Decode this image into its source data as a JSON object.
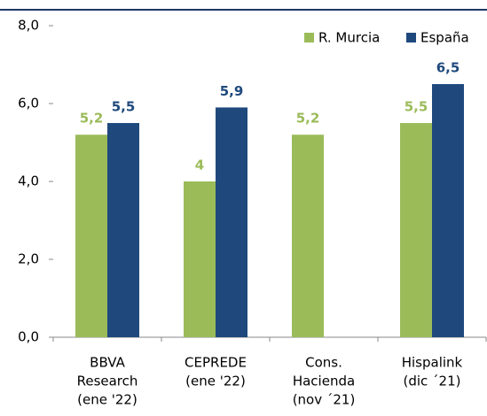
{
  "chart_data": {
    "type": "bar",
    "categories": [
      [
        "BBVA",
        "Research",
        "(ene '22)"
      ],
      [
        "CEPREDE",
        "(ene '22)"
      ],
      [
        "Cons.",
        "Hacienda",
        "(nov ´21)"
      ],
      [
        "Hispalink",
        "(dic ´21)"
      ]
    ],
    "series": [
      {
        "name": "R. Murcia",
        "color": "#9bbb59",
        "values": [
          5.2,
          4,
          5.2,
          5.5
        ],
        "value_labels": [
          "5,2",
          "4",
          "5,2",
          "5,5"
        ]
      },
      {
        "name": "España",
        "color": "#1f497d",
        "values": [
          5.5,
          5.9,
          null,
          6.5
        ],
        "value_labels": [
          "5,5",
          "5,9",
          null,
          "6,5"
        ]
      }
    ],
    "ylim": [
      0,
      8
    ],
    "yticks": [
      {
        "value": 0,
        "label": "0,0"
      },
      {
        "value": 2,
        "label": "2,0"
      },
      {
        "value": 4,
        "label": "4,0"
      },
      {
        "value": 6,
        "label": "6,0"
      },
      {
        "value": 8,
        "label": "8,0"
      }
    ],
    "grid": false,
    "legend": "top-right"
  }
}
